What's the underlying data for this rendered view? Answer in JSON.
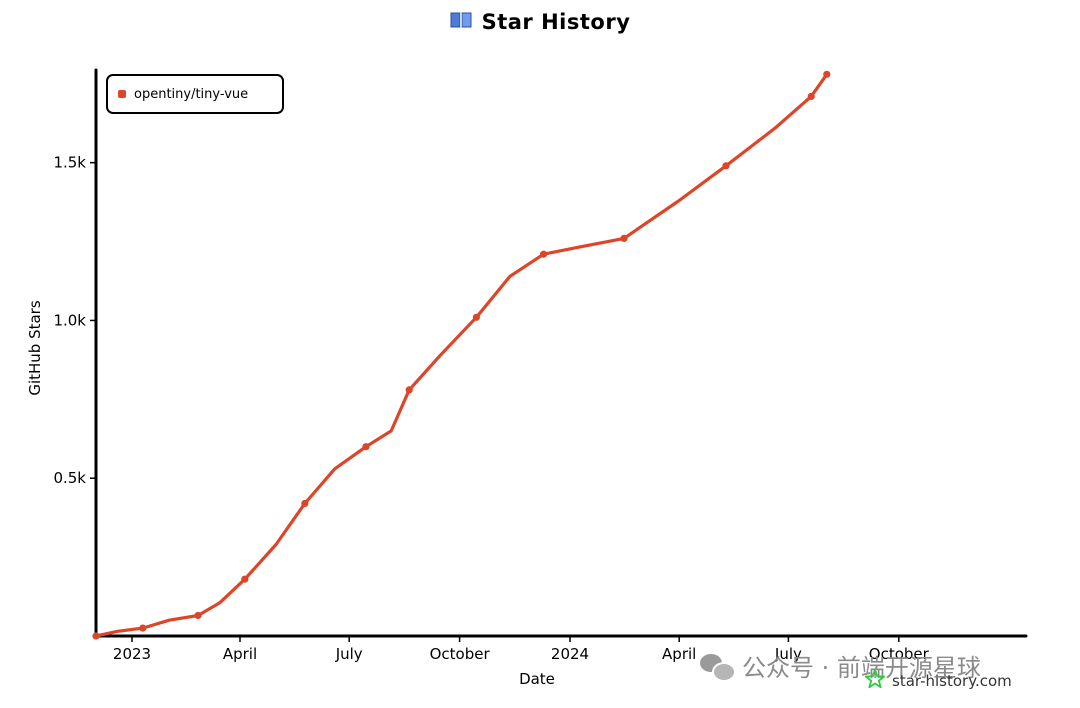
{
  "title": "Star History",
  "title_icon": "book-icon",
  "legend": {
    "label": "opentiny/tiny-vue",
    "color": "#dd4528"
  },
  "watermark": {
    "text": "公众号 · 前端开源星球",
    "icon": "wechat-icon"
  },
  "site": {
    "text": "star-history.com",
    "icon": "star-icon",
    "icon_color": "#2ecc40"
  },
  "chart_data": {
    "type": "line",
    "title": "Star History",
    "xlabel": "Date",
    "ylabel": "GitHub Stars",
    "x_ticks": [
      {
        "label": "2023",
        "date": "2023-01-01"
      },
      {
        "label": "April",
        "date": "2023-04-01"
      },
      {
        "label": "July",
        "date": "2023-07-01"
      },
      {
        "label": "October",
        "date": "2023-10-01"
      },
      {
        "label": "2024",
        "date": "2024-01-01"
      },
      {
        "label": "April",
        "date": "2024-04-01"
      },
      {
        "label": "July",
        "date": "2024-07-01"
      },
      {
        "label": "October",
        "date": "2024-10-01"
      }
    ],
    "y_ticks": [
      {
        "label": "0.5k",
        "value": 500
      },
      {
        "label": "1.0k",
        "value": 1000
      },
      {
        "label": "1.5k",
        "value": 1500
      }
    ],
    "xlim": [
      "2022-12-02",
      "2025-01-15"
    ],
    "ylim": [
      0,
      1800
    ],
    "grid": false,
    "legend_position": "top-left",
    "series": [
      {
        "name": "opentiny/tiny-vue",
        "color": "#dd4528",
        "points": [
          {
            "x": "2022-12-02",
            "y": 0
          },
          {
            "x": "2022-12-20",
            "y": 15
          },
          {
            "x": "2023-01-10",
            "y": 25
          },
          {
            "x": "2023-02-01",
            "y": 50
          },
          {
            "x": "2023-02-25",
            "y": 65
          },
          {
            "x": "2023-03-15",
            "y": 105
          },
          {
            "x": "2023-04-05",
            "y": 180
          },
          {
            "x": "2023-05-01",
            "y": 290
          },
          {
            "x": "2023-05-25",
            "y": 420
          },
          {
            "x": "2023-06-19",
            "y": 530
          },
          {
            "x": "2023-07-15",
            "y": 600
          },
          {
            "x": "2023-08-05",
            "y": 650
          },
          {
            "x": "2023-08-20",
            "y": 780
          },
          {
            "x": "2023-09-15",
            "y": 890
          },
          {
            "x": "2023-10-15",
            "y": 1010
          },
          {
            "x": "2023-11-12",
            "y": 1140
          },
          {
            "x": "2023-12-10",
            "y": 1210
          },
          {
            "x": "2024-01-05",
            "y": 1230
          },
          {
            "x": "2024-02-15",
            "y": 1260
          },
          {
            "x": "2024-04-01",
            "y": 1380
          },
          {
            "x": "2024-05-10",
            "y": 1490
          },
          {
            "x": "2024-06-20",
            "y": 1610
          },
          {
            "x": "2024-07-20",
            "y": 1710
          },
          {
            "x": "2024-08-02",
            "y": 1780
          }
        ]
      }
    ]
  }
}
